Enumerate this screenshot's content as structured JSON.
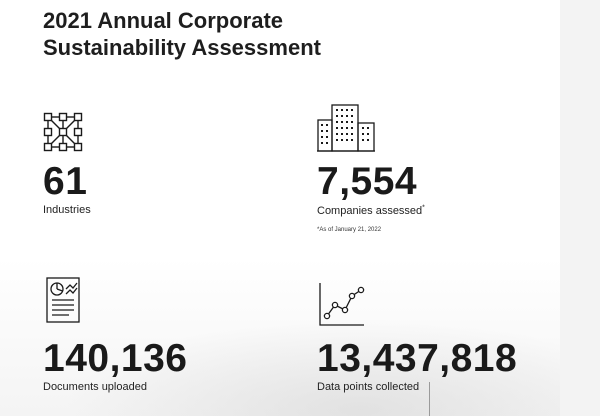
{
  "title": {
    "line1": "2021 Annual Corporate",
    "line2": "Sustainability Assessment"
  },
  "stats": [
    {
      "icon": "network-nodes-icon",
      "value": "61",
      "label": "Industries"
    },
    {
      "icon": "buildings-icon",
      "value": "7,554",
      "label": "Companies assessed",
      "label_marker": "*",
      "note": "*As of January 21, 2022"
    },
    {
      "icon": "document-chart-icon",
      "value": "140,136",
      "label": "Documents uploaded"
    },
    {
      "icon": "line-chart-icon",
      "value": "13,437,818",
      "label": "Data points collected"
    }
  ],
  "colors": {
    "text": "#1a1a1a",
    "background": "#ffffff"
  }
}
